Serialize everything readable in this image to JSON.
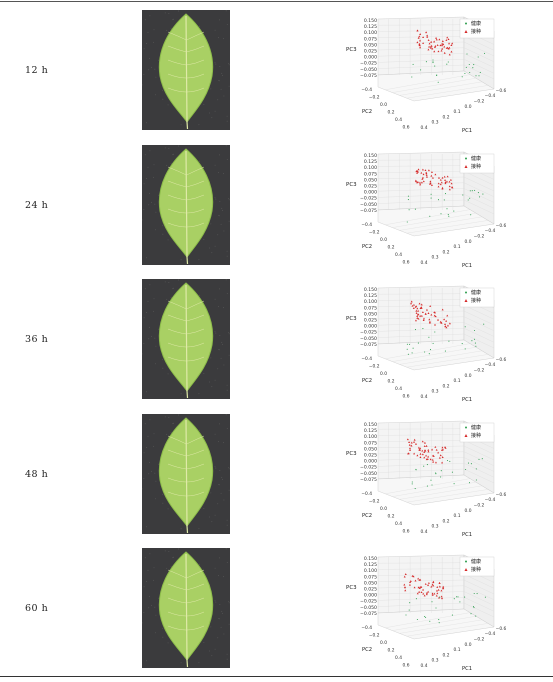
{
  "rows": [
    {
      "time": "12 h",
      "tilt": 0
    },
    {
      "time": "24 h",
      "tilt": 1
    },
    {
      "time": "36 h",
      "tilt": 2
    },
    {
      "time": "48 h",
      "tilt": 3
    },
    {
      "time": "60 h",
      "tilt": 4
    }
  ],
  "plot": {
    "zlabel": "PC3",
    "ylabel": "PC2",
    "xlabel": "PC1",
    "ztick_labels": [
      "0.150",
      "0.125",
      "0.100",
      "0.075",
      "0.050",
      "0.025",
      "0.000",
      "−0.025",
      "−0.050",
      "−0.075"
    ],
    "ytick_labels": [
      "−0.4",
      "−0.2",
      "0.0",
      "0.2",
      "0.4",
      "0.6"
    ],
    "xtick_labels": [
      "0.4",
      "0.3",
      "0.2",
      "0.1",
      "0.0",
      "−0.2",
      "−0.4",
      "−0.6"
    ],
    "legend": [
      {
        "label": "健康",
        "color": "#2e9e4f"
      },
      {
        "label": "接种",
        "color": "#d62a2a"
      }
    ]
  },
  "colors": {
    "photo_bg": "#3b3b3d",
    "leaf_main": "#a9d064",
    "leaf_edge": "#8dbd4a",
    "leaf_vein": "#dfeaa8",
    "healthy": "#2e9e4f",
    "inoculated": "#d62a2a"
  },
  "icons": {
    "leaf": "leaf-photo",
    "plot": "pca-3d-scatter"
  }
}
